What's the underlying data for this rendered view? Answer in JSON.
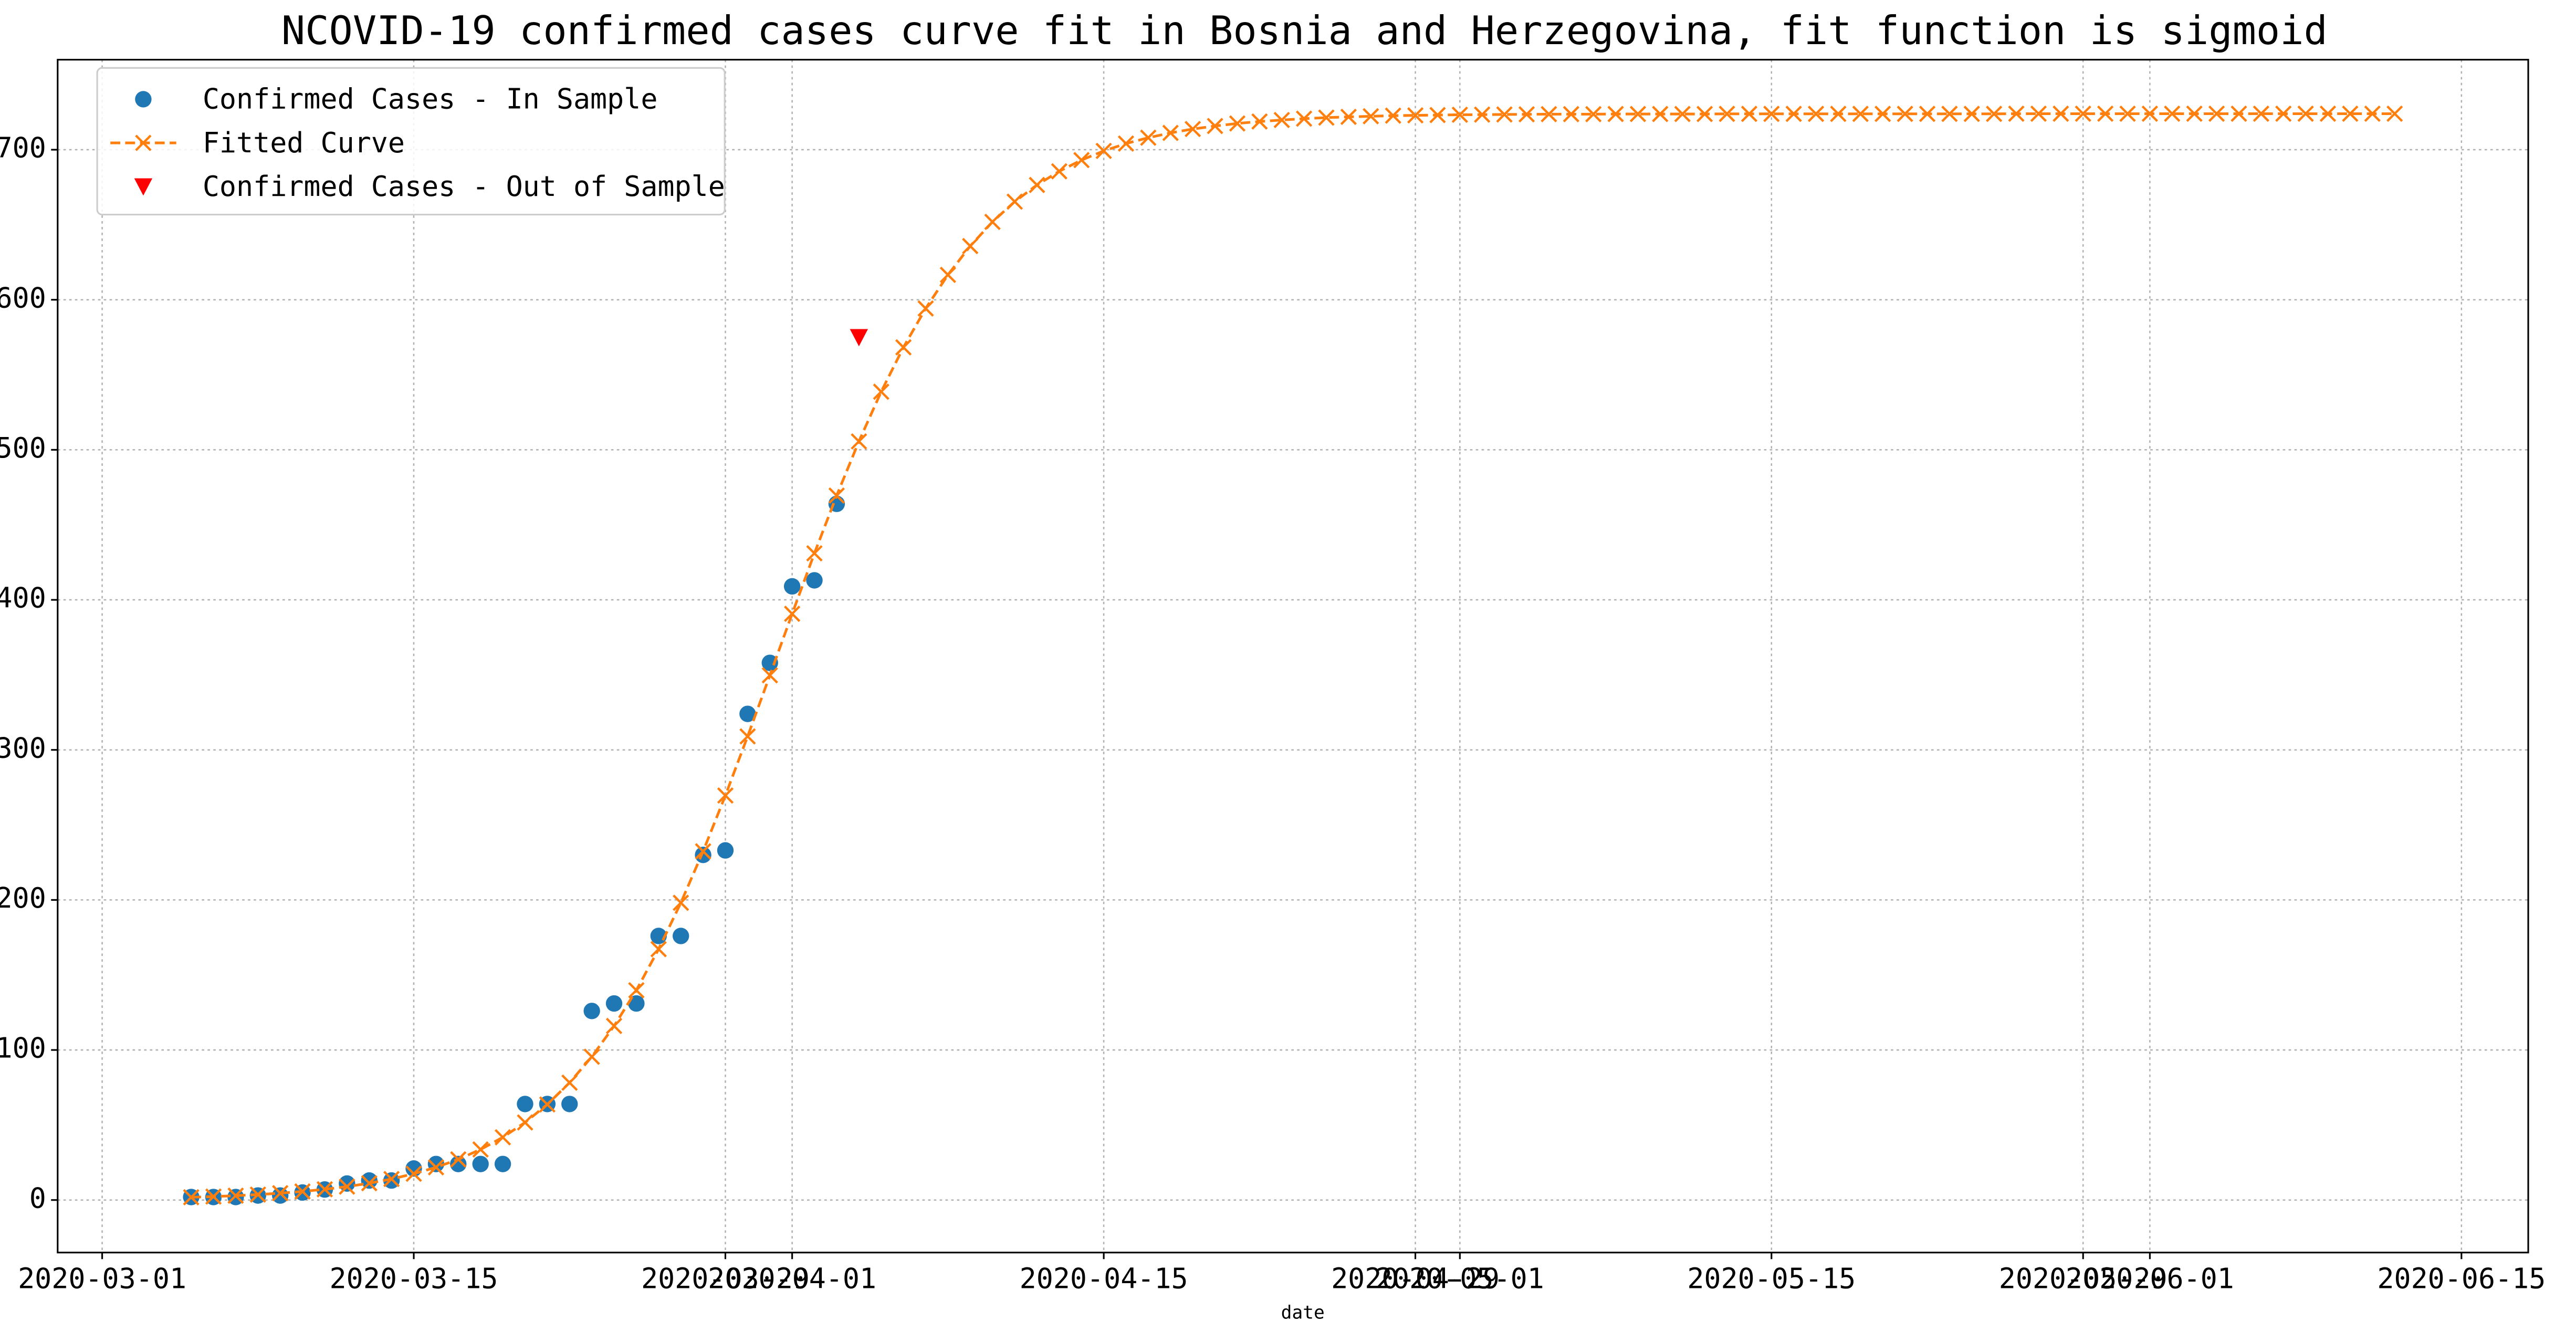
{
  "chart_data": {
    "type": "scatter-line",
    "title": "NCOVID-19 confirmed cases curve fit in Bosnia and Herzegovina, fit function is sigmoid",
    "xlabel": "date",
    "x": [
      "2020-03-05",
      "2020-03-06",
      "2020-03-07",
      "2020-03-08",
      "2020-03-09",
      "2020-03-10",
      "2020-03-11",
      "2020-03-12",
      "2020-03-13",
      "2020-03-14",
      "2020-03-15",
      "2020-03-16",
      "2020-03-17",
      "2020-03-18",
      "2020-03-19",
      "2020-03-20",
      "2020-03-21",
      "2020-03-22",
      "2020-03-23",
      "2020-03-24",
      "2020-03-25",
      "2020-03-26",
      "2020-03-27",
      "2020-03-28",
      "2020-03-29",
      "2020-03-30",
      "2020-03-31",
      "2020-04-01",
      "2020-04-02",
      "2020-04-03",
      "2020-04-04",
      "2020-04-05",
      "2020-04-06",
      "2020-04-07",
      "2020-04-08",
      "2020-04-09",
      "2020-04-10",
      "2020-04-11",
      "2020-04-12",
      "2020-04-13",
      "2020-04-14",
      "2020-04-15",
      "2020-04-16",
      "2020-04-17",
      "2020-04-18",
      "2020-04-19",
      "2020-04-20",
      "2020-04-21",
      "2020-04-22",
      "2020-04-23",
      "2020-04-24",
      "2020-04-25",
      "2020-04-26",
      "2020-04-27",
      "2020-04-28",
      "2020-04-29",
      "2020-04-30",
      "2020-05-01",
      "2020-05-02",
      "2020-05-03",
      "2020-05-04",
      "2020-05-05",
      "2020-05-06",
      "2020-05-07",
      "2020-05-08",
      "2020-05-09",
      "2020-05-10",
      "2020-05-11",
      "2020-05-12",
      "2020-05-13",
      "2020-05-14",
      "2020-05-15",
      "2020-05-16",
      "2020-05-17",
      "2020-05-18",
      "2020-05-19",
      "2020-05-20",
      "2020-05-21",
      "2020-05-22",
      "2020-05-23",
      "2020-05-24",
      "2020-05-25",
      "2020-05-26",
      "2020-05-27",
      "2020-05-28",
      "2020-05-29",
      "2020-05-30",
      "2020-05-31",
      "2020-06-01",
      "2020-06-02",
      "2020-06-03",
      "2020-06-04",
      "2020-06-05",
      "2020-06-06",
      "2020-06-07",
      "2020-06-08",
      "2020-06-09",
      "2020-06-10",
      "2020-06-11",
      "2020-06-12"
    ],
    "series": [
      {
        "name": "Confirmed Cases - In Sample",
        "color": "#1f77b4",
        "marker": "circle",
        "values": [
          2,
          2,
          2,
          3,
          3,
          5,
          7,
          11,
          13,
          13,
          21,
          24,
          24,
          24,
          24,
          64,
          64,
          64,
          126,
          131,
          131,
          176,
          176,
          230,
          233,
          324,
          358,
          409,
          413,
          464,
          null,
          null,
          null,
          null,
          null,
          null,
          null,
          null,
          null,
          null,
          null,
          null,
          null,
          null,
          null,
          null,
          null,
          null,
          null,
          null,
          null,
          null,
          null,
          null,
          null,
          null,
          null,
          null,
          null,
          null,
          null,
          null,
          null,
          null,
          null,
          null,
          null,
          null,
          null,
          null,
          null,
          null,
          null,
          null,
          null,
          null,
          null,
          null,
          null,
          null,
          null,
          null,
          null,
          null,
          null,
          null,
          null,
          null,
          null,
          null,
          null,
          null,
          null,
          null,
          null,
          null,
          null,
          null,
          null,
          null
        ]
      },
      {
        "name": "Fitted Curve",
        "color": "#ff7f0e",
        "marker": "x",
        "line": "dashed",
        "values": [
          1.85,
          2.31,
          2.9,
          3.63,
          4.56,
          5.71,
          7.15,
          8.95,
          11.2,
          14.0,
          17.5,
          21.8,
          27.1,
          33.7,
          41.8,
          51.7,
          63.7,
          78.2,
          95.5,
          116.0,
          139.8,
          167.2,
          198.1,
          232.4,
          269.6,
          309.0,
          349.7,
          390.7,
          431.0,
          469.5,
          505.6,
          538.7,
          568.3,
          594.2,
          616.6,
          635.8,
          651.9,
          665.4,
          676.5,
          685.6,
          693.1,
          699.2,
          704.1,
          708.0,
          711.2,
          713.8,
          715.8,
          717.5,
          718.8,
          719.8,
          720.7,
          721.4,
          721.9,
          722.3,
          722.7,
          722.9,
          723.1,
          723.3,
          723.4,
          723.5,
          723.6,
          723.7,
          723.7,
          723.7,
          723.8,
          723.8,
          723.8,
          723.8,
          723.8,
          723.9,
          723.9,
          723.9,
          723.9,
          723.9,
          723.9,
          723.9,
          723.9,
          723.9,
          723.9,
          723.9,
          723.9,
          723.9,
          724,
          724,
          724,
          724,
          724,
          724,
          724,
          724,
          724,
          724,
          724,
          724,
          724,
          724,
          724,
          724,
          724,
          724
        ]
      },
      {
        "name": "Confirmed Cases - Out of Sample",
        "color": "#ff0000",
        "marker": "triangle-down",
        "values": [
          null,
          null,
          null,
          null,
          null,
          null,
          null,
          null,
          null,
          null,
          null,
          null,
          null,
          null,
          null,
          null,
          null,
          null,
          null,
          null,
          null,
          null,
          null,
          null,
          null,
          null,
          null,
          null,
          null,
          null,
          575,
          null,
          null,
          null,
          null,
          null,
          null,
          null,
          null,
          null,
          null,
          null,
          null,
          null,
          null,
          null,
          null,
          null,
          null,
          null,
          null,
          null,
          null,
          null,
          null,
          null,
          null,
          null,
          null,
          null,
          null,
          null,
          null,
          null,
          null,
          null,
          null,
          null,
          null,
          null,
          null,
          null,
          null,
          null,
          null,
          null,
          null,
          null,
          null,
          null,
          null,
          null,
          null,
          null,
          null,
          null,
          null,
          null,
          null,
          null,
          null,
          null,
          null,
          null,
          null,
          null,
          null,
          null,
          null,
          null
        ]
      }
    ],
    "xlim": [
      "2020-02-28",
      "2020-06-18"
    ],
    "xticks": [
      "2020-03-01",
      "2020-03-15",
      "2020-03-29",
      "2020-04-01",
      "2020-04-15",
      "2020-04-29",
      "2020-05-01",
      "2020-05-15",
      "2020-05-29",
      "2020-06-01",
      "2020-06-15"
    ],
    "ylim": [
      -35,
      760
    ],
    "yticks": [
      0,
      100,
      200,
      300,
      400,
      500,
      600,
      700
    ],
    "grid": true,
    "legend": "upper left"
  }
}
